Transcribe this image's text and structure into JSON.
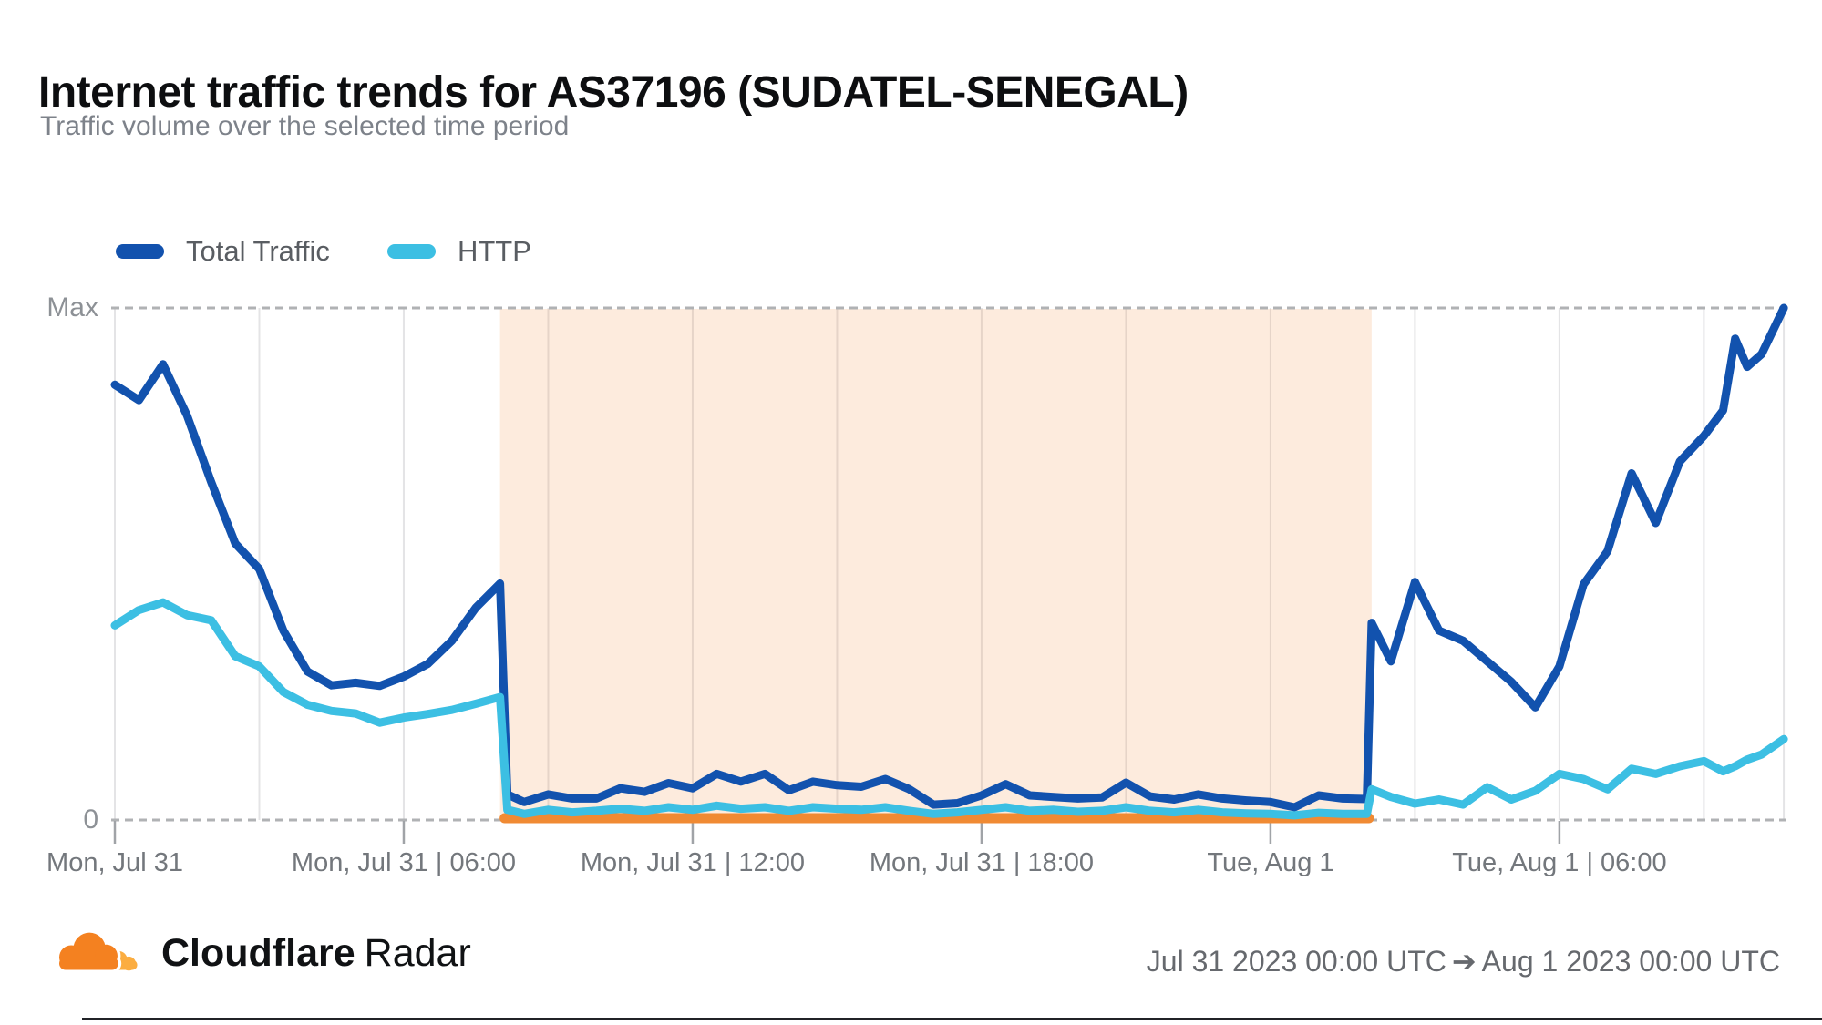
{
  "header": {
    "title": "Internet traffic trends for AS37196 (SUDATEL-SENEGAL)",
    "subtitle": "Traffic volume over the selected time period"
  },
  "legend": {
    "items": [
      {
        "label": "Total Traffic",
        "color": "#1252ae"
      },
      {
        "label": "HTTP",
        "color": "#3cbfe3"
      }
    ]
  },
  "footer": {
    "brand_bold": "Cloudflare",
    "brand_regular": "Radar",
    "range_start": "Jul 31 2023 00:00 UTC",
    "arrow": "➔",
    "range_end": "Aug 1 2023 00:00 UTC"
  },
  "colors": {
    "total_traffic_line": "#1252ae",
    "http_line": "#3cbfe3",
    "anomaly_fill": "rgba(242,138,51,0.17)",
    "anomaly_bar": "#f08a33",
    "gridline": "#e4e4e6",
    "dashed_boundary": "#b0b2b4",
    "tick": "#a0a3a7",
    "x_label_text": "#73777c",
    "y_label_text": "#8d9196"
  },
  "chart_data": {
    "type": "line",
    "title": "Internet traffic trends for AS37196 (SUDATEL-SENEGAL)",
    "subtitle": "Traffic volume over the selected time period",
    "xlabel": "",
    "ylabel": "",
    "y_axis_labels": {
      "max": "Max",
      "zero": "0"
    },
    "ylim": [
      0,
      1
    ],
    "legend_position": "top-left",
    "grid": "vertical solid every 3h; dashed horizontal lines at Max and 0",
    "x_unit": "hours since Jul 31 2023 00:00 UTC",
    "x_span_hours": 34.66,
    "gridline_hours": [
      0,
      3,
      6,
      9,
      12,
      15,
      18,
      21,
      24,
      27,
      30,
      33,
      34.66
    ],
    "x_ticks": [
      {
        "hour": 0,
        "label": "Mon, Jul 31"
      },
      {
        "hour": 6,
        "label": "Mon, Jul 31 | 06:00"
      },
      {
        "hour": 12,
        "label": "Mon, Jul 31 | 12:00"
      },
      {
        "hour": 18,
        "label": "Mon, Jul 31 | 18:00"
      },
      {
        "hour": 24,
        "label": "Tue, Aug 1"
      },
      {
        "hour": 30,
        "label": "Tue, Aug 1 | 06:00"
      }
    ],
    "anomaly_window": {
      "start_hour": 8,
      "end_hour": 26.1,
      "start_time": "Mon, Jul 31 08:00",
      "end_time": "Tue, Aug 1 02:00",
      "fill": "rgba(242,138,51,0.17)",
      "baseline_bar_color": "#f08a33"
    },
    "x_hours": [
      0,
      0.5,
      1,
      1.5,
      2,
      2.5,
      3,
      3.5,
      4,
      4.5,
      5,
      5.5,
      6,
      6.5,
      7,
      7.5,
      8,
      8.15,
      8.5,
      9,
      9.5,
      10,
      10.5,
      11,
      11.5,
      12,
      12.5,
      13,
      13.5,
      14,
      14.5,
      15,
      15.5,
      16,
      16.5,
      17,
      17.5,
      18,
      18.5,
      19,
      19.5,
      20,
      20.5,
      21,
      21.5,
      22,
      22.5,
      23,
      23.5,
      24,
      24.5,
      25,
      25.5,
      26,
      26.1,
      26.5,
      27,
      27.5,
      28,
      28.5,
      29,
      29.5,
      30,
      30.5,
      31,
      31.5,
      32,
      32.5,
      33,
      33.4,
      33.65,
      33.9,
      34.2,
      34.66
    ],
    "series": [
      {
        "name": "Total Traffic",
        "color": "#1252ae",
        "values": [
          0.85,
          0.82,
          0.89,
          0.79,
          0.66,
          0.54,
          0.49,
          0.37,
          0.29,
          0.263,
          0.268,
          0.262,
          0.28,
          0.305,
          0.35,
          0.415,
          0.462,
          0.05,
          0.035,
          0.05,
          0.042,
          0.042,
          0.062,
          0.055,
          0.072,
          0.062,
          0.09,
          0.075,
          0.09,
          0.058,
          0.075,
          0.068,
          0.065,
          0.08,
          0.06,
          0.03,
          0.033,
          0.048,
          0.07,
          0.048,
          0.045,
          0.042,
          0.044,
          0.073,
          0.046,
          0.04,
          0.05,
          0.042,
          0.038,
          0.035,
          0.025,
          0.048,
          0.042,
          0.041,
          0.385,
          0.31,
          0.465,
          0.37,
          0.35,
          0.31,
          0.27,
          0.22,
          0.3,
          0.46,
          0.525,
          0.677,
          0.58,
          0.7,
          0.75,
          0.8,
          0.94,
          0.885,
          0.91,
          1.0
        ]
      },
      {
        "name": "HTTP",
        "color": "#3cbfe3",
        "values": [
          0.38,
          0.41,
          0.425,
          0.4,
          0.39,
          0.32,
          0.3,
          0.25,
          0.225,
          0.213,
          0.208,
          0.19,
          0.2,
          0.207,
          0.215,
          0.227,
          0.24,
          0.02,
          0.012,
          0.02,
          0.015,
          0.018,
          0.022,
          0.018,
          0.025,
          0.02,
          0.028,
          0.022,
          0.025,
          0.018,
          0.025,
          0.022,
          0.02,
          0.025,
          0.018,
          0.012,
          0.015,
          0.02,
          0.025,
          0.018,
          0.02,
          0.016,
          0.018,
          0.025,
          0.018,
          0.015,
          0.02,
          0.015,
          0.013,
          0.012,
          0.009,
          0.014,
          0.012,
          0.012,
          0.06,
          0.045,
          0.032,
          0.04,
          0.03,
          0.064,
          0.04,
          0.057,
          0.09,
          0.08,
          0.06,
          0.1,
          0.09,
          0.105,
          0.115,
          0.095,
          0.105,
          0.118,
          0.128,
          0.158
        ]
      }
    ]
  }
}
